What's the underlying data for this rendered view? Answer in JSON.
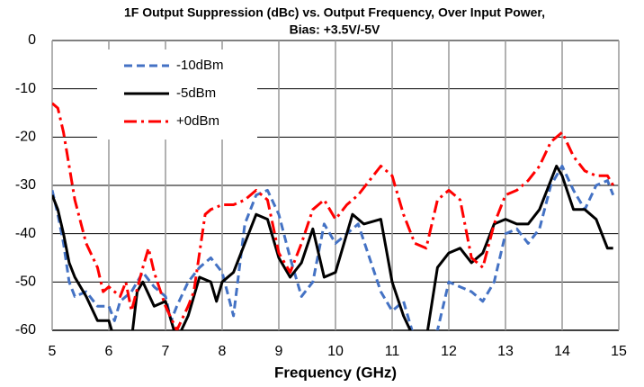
{
  "chart_data": {
    "type": "line",
    "title": "1F Output Suppression (dBc) vs. Output Frequency, Over Input Power,",
    "subtitle": "Bias: +3.5V/-5V",
    "x_label": "Frequency (GHz)",
    "xlim": [
      5,
      15
    ],
    "xticks": [
      5,
      6,
      7,
      8,
      9,
      10,
      11,
      12,
      13,
      14,
      15
    ],
    "ylim": [
      -60,
      0
    ],
    "yticks": [
      -60,
      -50,
      -40,
      -30,
      -20,
      -10,
      0
    ],
    "grid": true,
    "legend": "upper left",
    "series": [
      {
        "name": "-10dBm",
        "color": "#4472c4",
        "style": "dashed",
        "x": [
          5.0,
          5.1,
          5.2,
          5.3,
          5.4,
          5.6,
          5.8,
          6.0,
          6.1,
          6.2,
          6.4,
          6.6,
          6.8,
          7.0,
          7.1,
          7.2,
          7.4,
          7.6,
          7.8,
          8.0,
          8.2,
          8.4,
          8.6,
          8.8,
          9.0,
          9.2,
          9.4,
          9.6,
          9.8,
          10.0,
          10.2,
          10.4,
          10.6,
          10.8,
          11.0,
          11.2,
          11.4,
          11.6,
          11.8,
          12.0,
          12.2,
          12.4,
          12.6,
          12.8,
          13.0,
          13.2,
          13.4,
          13.6,
          13.8,
          14.0,
          14.2,
          14.4,
          14.6,
          14.8,
          14.9
        ],
        "values": [
          -31,
          -36,
          -42,
          -50,
          -53,
          -52,
          -55,
          -55,
          -58,
          -54,
          -52,
          -48,
          -51,
          -53,
          -58,
          -55,
          -50,
          -47,
          -45,
          -48,
          -57,
          -38,
          -32,
          -31,
          -36,
          -45,
          -53,
          -50,
          -38,
          -42,
          -40,
          -38,
          -45,
          -52,
          -56,
          -54,
          -62,
          -62,
          -60,
          -50,
          -51,
          -52,
          -54,
          -50,
          -40,
          -39,
          -42,
          -39,
          -30,
          -26,
          -31,
          -35,
          -30,
          -29,
          -32
        ]
      },
      {
        "name": "-5dBm",
        "color": "#000000",
        "style": "solid",
        "x": [
          5.0,
          5.1,
          5.2,
          5.3,
          5.4,
          5.6,
          5.8,
          6.0,
          6.1,
          6.4,
          6.5,
          6.6,
          6.8,
          7.0,
          7.1,
          7.2,
          7.4,
          7.6,
          7.8,
          7.9,
          8.0,
          8.2,
          8.4,
          8.6,
          8.8,
          9.0,
          9.2,
          9.4,
          9.6,
          9.8,
          10.0,
          10.2,
          10.3,
          10.5,
          10.8,
          11.0,
          11.2,
          11.4,
          11.6,
          11.8,
          12.0,
          12.2,
          12.4,
          12.6,
          12.8,
          13.0,
          13.2,
          13.4,
          13.6,
          13.8,
          13.9,
          14.0,
          14.2,
          14.4,
          14.6,
          14.8,
          14.9
        ],
        "values": [
          -32,
          -35,
          -40,
          -46,
          -49,
          -53,
          -58,
          -58,
          -62,
          -62,
          -52,
          -50,
          -55,
          -54,
          -58,
          -62,
          -57,
          -49,
          -50,
          -54,
          -50,
          -48,
          -42,
          -36,
          -37,
          -45,
          -49,
          -46,
          -39,
          -49,
          -48,
          -40,
          -36,
          -38,
          -37,
          -50,
          -57,
          -62,
          -62,
          -47,
          -44,
          -43,
          -46,
          -44,
          -38,
          -37,
          -38,
          -38,
          -35,
          -29,
          -26,
          -28,
          -35,
          -35,
          -37,
          -43,
          -43
        ]
      },
      {
        "name": "+0dBm",
        "color": "#ff0000",
        "style": "dashdot",
        "x": [
          5.0,
          5.1,
          5.2,
          5.3,
          5.4,
          5.6,
          5.8,
          5.9,
          6.0,
          6.2,
          6.3,
          6.4,
          6.6,
          6.7,
          6.8,
          7.0,
          7.2,
          7.4,
          7.5,
          7.7,
          7.8,
          8.0,
          8.2,
          8.4,
          8.6,
          8.8,
          9.0,
          9.2,
          9.4,
          9.6,
          9.8,
          10.0,
          10.2,
          10.4,
          10.6,
          10.8,
          11.0,
          11.2,
          11.4,
          11.6,
          11.8,
          12.0,
          12.2,
          12.4,
          12.6,
          12.8,
          13.0,
          13.2,
          13.4,
          13.6,
          13.8,
          14.0,
          14.2,
          14.4,
          14.6,
          14.8,
          14.9
        ],
        "values": [
          -13,
          -14,
          -19,
          -26,
          -33,
          -42,
          -47,
          -52,
          -51,
          -53,
          -50,
          -56,
          -47,
          -43,
          -48,
          -55,
          -60,
          -55,
          -52,
          -36,
          -35,
          -34,
          -34,
          -33,
          -31,
          -33,
          -44,
          -48,
          -42,
          -35,
          -33,
          -37,
          -34,
          -32,
          -29,
          -26,
          -28,
          -36,
          -42,
          -43,
          -33,
          -31,
          -33,
          -45,
          -47,
          -38,
          -32,
          -31,
          -29,
          -26,
          -21,
          -19,
          -24,
          -27,
          -28,
          -28,
          -30
        ]
      }
    ]
  }
}
